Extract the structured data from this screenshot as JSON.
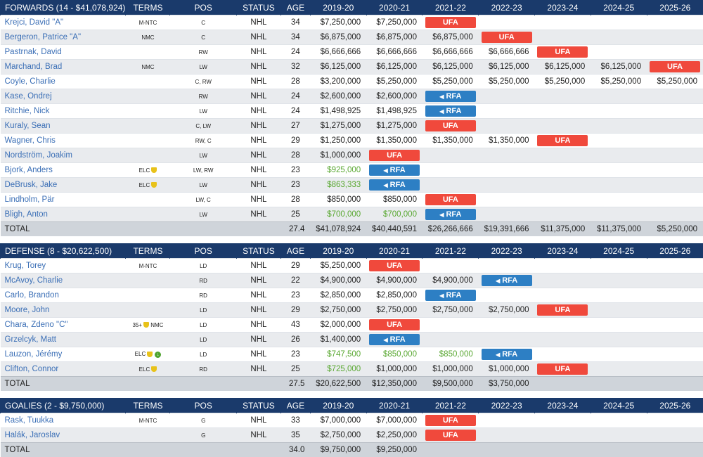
{
  "columns": {
    "terms": "TERMS",
    "pos": "POS",
    "status": "STATUS",
    "age": "AGE",
    "years": [
      "2019-20",
      "2020-21",
      "2021-22",
      "2022-23",
      "2023-24",
      "2024-25",
      "2025-26"
    ]
  },
  "sections": [
    {
      "title": "FORWARDS (14 - $41,078,924)",
      "rows": [
        {
          "name": "Krejci, David \"A\"",
          "terms": "M-NTC",
          "pos": "C",
          "status": "NHL",
          "age": "34",
          "cells": [
            "$7,250,000",
            "$7,250,000",
            {
              "badge": "UFA"
            },
            "",
            "",
            "",
            ""
          ]
        },
        {
          "name": "Bergeron, Patrice \"A\"",
          "terms": "NMC",
          "pos": "C",
          "status": "NHL",
          "age": "34",
          "cells": [
            "$6,875,000",
            "$6,875,000",
            "$6,875,000",
            {
              "badge": "UFA"
            },
            "",
            "",
            ""
          ]
        },
        {
          "name": "Pastrnak, David",
          "terms": "",
          "pos": "RW",
          "status": "NHL",
          "age": "24",
          "cells": [
            "$6,666,666",
            "$6,666,666",
            "$6,666,666",
            "$6,666,666",
            {
              "badge": "UFA"
            },
            "",
            ""
          ]
        },
        {
          "name": "Marchand, Brad",
          "terms": "NMC",
          "pos": "LW",
          "status": "NHL",
          "age": "32",
          "cells": [
            "$6,125,000",
            "$6,125,000",
            "$6,125,000",
            "$6,125,000",
            "$6,125,000",
            "$6,125,000",
            {
              "badge": "UFA"
            }
          ]
        },
        {
          "name": "Coyle, Charlie",
          "terms": "",
          "pos": "C, RW",
          "status": "NHL",
          "age": "28",
          "cells": [
            "$3,200,000",
            "$5,250,000",
            "$5,250,000",
            "$5,250,000",
            "$5,250,000",
            "$5,250,000",
            "$5,250,000"
          ]
        },
        {
          "name": "Kase, Ondrej",
          "terms": "",
          "pos": "RW",
          "status": "NHL",
          "age": "24",
          "cells": [
            "$2,600,000",
            "$2,600,000",
            {
              "badge": "RFA"
            },
            "",
            "",
            "",
            ""
          ]
        },
        {
          "name": "Ritchie, Nick",
          "terms": "",
          "pos": "LW",
          "status": "NHL",
          "age": "24",
          "cells": [
            "$1,498,925",
            "$1,498,925",
            {
              "badge": "RFA"
            },
            "",
            "",
            "",
            ""
          ]
        },
        {
          "name": "Kuraly, Sean",
          "terms": "",
          "pos": "C, LW",
          "status": "NHL",
          "age": "27",
          "cells": [
            "$1,275,000",
            "$1,275,000",
            {
              "badge": "UFA"
            },
            "",
            "",
            "",
            ""
          ]
        },
        {
          "name": "Wagner, Chris",
          "terms": "",
          "pos": "RW, C",
          "status": "NHL",
          "age": "29",
          "cells": [
            "$1,250,000",
            "$1,350,000",
            "$1,350,000",
            "$1,350,000",
            {
              "badge": "UFA"
            },
            "",
            ""
          ]
        },
        {
          "name": "Nordström, Joakim",
          "terms": "",
          "pos": "LW",
          "status": "NHL",
          "age": "28",
          "cells": [
            "$1,000,000",
            {
              "badge": "UFA"
            },
            "",
            "",
            "",
            "",
            ""
          ]
        },
        {
          "name": "Bjork, Anders",
          "terms": "ELC",
          "trophy": true,
          "pos": "LW, RW",
          "status": "NHL",
          "age": "23",
          "green": [
            0
          ],
          "cells": [
            "$925,000",
            {
              "badge": "RFA"
            },
            "",
            "",
            "",
            "",
            ""
          ]
        },
        {
          "name": "DeBrusk, Jake",
          "terms": "ELC",
          "trophy": true,
          "pos": "LW",
          "status": "NHL",
          "age": "23",
          "green": [
            0
          ],
          "cells": [
            "$863,333",
            {
              "badge": "RFA"
            },
            "",
            "",
            "",
            "",
            ""
          ]
        },
        {
          "name": "Lindholm, Pär",
          "terms": "",
          "pos": "LW, C",
          "status": "NHL",
          "age": "28",
          "cells": [
            "$850,000",
            "$850,000",
            {
              "badge": "UFA"
            },
            "",
            "",
            "",
            ""
          ]
        },
        {
          "name": "Bligh, Anton",
          "terms": "",
          "pos": "LW",
          "status": "NHL",
          "age": "25",
          "green": [
            0,
            1
          ],
          "cells": [
            "$700,000",
            "$700,000",
            {
              "badge": "RFA"
            },
            "",
            "",
            "",
            ""
          ]
        }
      ],
      "total": {
        "label": "TOTAL",
        "age": "27.4",
        "cells": [
          "$41,078,924",
          "$40,440,591",
          "$26,266,666",
          "$19,391,666",
          "$11,375,000",
          "$11,375,000",
          "$5,250,000"
        ]
      }
    },
    {
      "title": "DEFENSE (8 - $20,622,500)",
      "rows": [
        {
          "name": "Krug, Torey",
          "terms": "M-NTC",
          "pos": "LD",
          "status": "NHL",
          "age": "29",
          "cells": [
            "$5,250,000",
            {
              "badge": "UFA"
            },
            "",
            "",
            "",
            "",
            ""
          ]
        },
        {
          "name": "McAvoy, Charlie",
          "terms": "",
          "pos": "RD",
          "status": "NHL",
          "age": "22",
          "cells": [
            "$4,900,000",
            "$4,900,000",
            "$4,900,000",
            {
              "badge": "RFA"
            },
            "",
            "",
            ""
          ]
        },
        {
          "name": "Carlo, Brandon",
          "terms": "",
          "pos": "RD",
          "status": "NHL",
          "age": "23",
          "cells": [
            "$2,850,000",
            "$2,850,000",
            {
              "badge": "RFA"
            },
            "",
            "",
            "",
            ""
          ]
        },
        {
          "name": "Moore, John",
          "terms": "",
          "pos": "LD",
          "status": "NHL",
          "age": "29",
          "cells": [
            "$2,750,000",
            "$2,750,000",
            "$2,750,000",
            "$2,750,000",
            {
              "badge": "UFA"
            },
            "",
            ""
          ]
        },
        {
          "name": "Chara, Zdeno \"C\"",
          "terms": "35+",
          "trophy": true,
          "terms2": "NMC",
          "pos": "LD",
          "status": "NHL",
          "age": "43",
          "cells": [
            "$2,000,000",
            {
              "badge": "UFA"
            },
            "",
            "",
            "",
            "",
            ""
          ]
        },
        {
          "name": "Grzelcyk, Matt",
          "terms": "",
          "pos": "LD",
          "status": "NHL",
          "age": "26",
          "cells": [
            "$1,400,000",
            {
              "badge": "RFA"
            },
            "",
            "",
            "",
            "",
            ""
          ]
        },
        {
          "name": "Lauzon, Jérémy",
          "terms": "ELC",
          "trophy": true,
          "dl": true,
          "pos": "LD",
          "status": "NHL",
          "age": "23",
          "green": [
            0,
            1,
            2
          ],
          "cells": [
            "$747,500",
            "$850,000",
            "$850,000",
            {
              "badge": "RFA"
            },
            "",
            "",
            ""
          ]
        },
        {
          "name": "Clifton, Connor",
          "terms": "ELC",
          "trophy": true,
          "pos": "RD",
          "status": "NHL",
          "age": "25",
          "green": [
            0
          ],
          "cells": [
            "$725,000",
            "$1,000,000",
            "$1,000,000",
            "$1,000,000",
            {
              "badge": "UFA"
            },
            "",
            ""
          ]
        }
      ],
      "total": {
        "label": "TOTAL",
        "age": "27.5",
        "cells": [
          "$20,622,500",
          "$12,350,000",
          "$9,500,000",
          "$3,750,000",
          "",
          "",
          ""
        ]
      }
    },
    {
      "title": "GOALIES (2 - $9,750,000)",
      "rows": [
        {
          "name": "Rask, Tuukka",
          "terms": "M-NTC",
          "pos": "G",
          "status": "NHL",
          "age": "33",
          "cells": [
            "$7,000,000",
            "$7,000,000",
            {
              "badge": "UFA"
            },
            "",
            "",
            "",
            ""
          ]
        },
        {
          "name": "Halák, Jaroslav",
          "terms": "",
          "pos": "G",
          "status": "NHL",
          "age": "35",
          "cells": [
            "$2,750,000",
            "$2,250,000",
            {
              "badge": "UFA"
            },
            "",
            "",
            "",
            ""
          ]
        }
      ],
      "total": {
        "label": "TOTAL",
        "age": "34.0",
        "cells": [
          "$9,750,000",
          "$9,250,000",
          "",
          "",
          "",
          "",
          ""
        ]
      }
    }
  ],
  "colors": {
    "header": "#1a3a6b",
    "ufa": "#f0493c",
    "rfa": "#2d7fc4",
    "elc_green": "#5aa832",
    "link": "#3b6fb6"
  },
  "icons": {
    "rfa": "megaphone-icon",
    "trophy": "trophy-icon",
    "download": "download-icon"
  }
}
